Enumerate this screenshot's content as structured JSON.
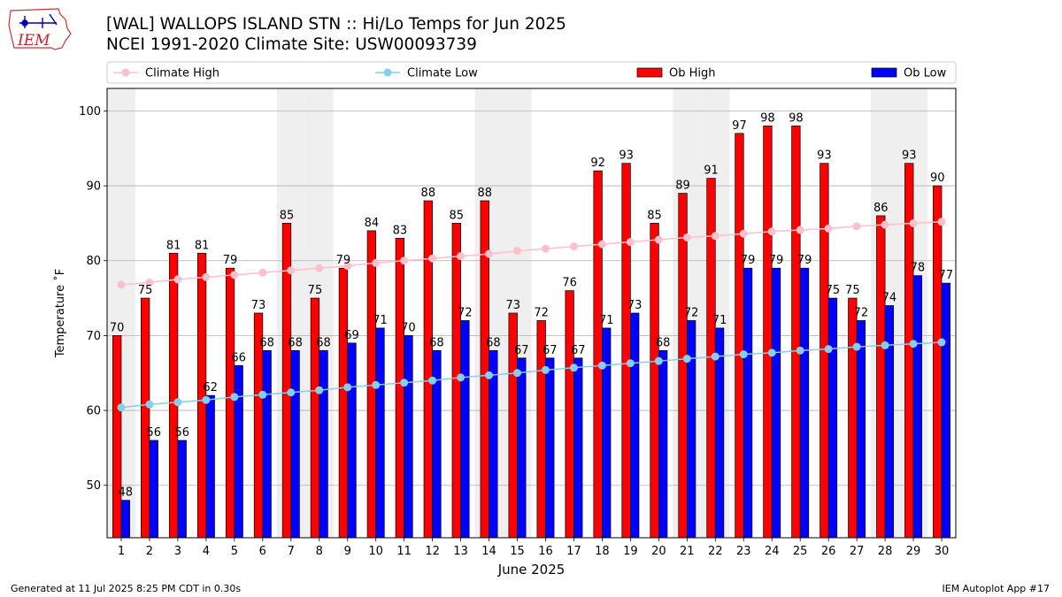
{
  "header": {
    "logo_text": "IEM",
    "title_line1": "[WAL] WALLOPS ISLAND STN :: Hi/Lo Temps for Jun 2025",
    "title_line2": "NCEI 1991-2020 Climate Site: USW00093739"
  },
  "footer": {
    "left": "Generated at 11 Jul 2025 8:25 PM CDT in 0.30s",
    "right": "IEM Autoplot App #17"
  },
  "chart_data": {
    "type": "bar",
    "xlabel": "June 2025",
    "ylabel": "Temperature ˚F",
    "ylim": [
      43,
      103
    ],
    "yticks": [
      50,
      60,
      70,
      80,
      90,
      100
    ],
    "grid": true,
    "legend_position": "top",
    "categories": [
      1,
      2,
      3,
      4,
      5,
      6,
      7,
      8,
      9,
      10,
      11,
      12,
      13,
      14,
      15,
      16,
      17,
      18,
      19,
      20,
      21,
      22,
      23,
      24,
      25,
      26,
      27,
      28,
      29,
      30
    ],
    "weekend_shaded_days": [
      1,
      7,
      8,
      14,
      15,
      21,
      22,
      28,
      29
    ],
    "series": [
      {
        "name": "Ob High",
        "kind": "bar",
        "color": "#ff0000",
        "values": [
          70,
          75,
          81,
          81,
          79,
          73,
          85,
          75,
          79,
          84,
          83,
          88,
          85,
          88,
          73,
          72,
          76,
          92,
          93,
          85,
          89,
          91,
          97,
          98,
          98,
          93,
          75,
          86,
          93,
          90
        ]
      },
      {
        "name": "Ob Low",
        "kind": "bar",
        "color": "#0000ff",
        "values": [
          48,
          56,
          56,
          62,
          66,
          68,
          68,
          68,
          69,
          71,
          70,
          68,
          72,
          68,
          67,
          67,
          67,
          71,
          73,
          68,
          72,
          71,
          79,
          79,
          79,
          75,
          72,
          74,
          78,
          77
        ]
      },
      {
        "name": "Climate High",
        "kind": "line",
        "color": "#ffc0cb",
        "values": [
          76.8,
          77.1,
          77.5,
          77.8,
          78.1,
          78.4,
          78.7,
          79.0,
          79.3,
          79.7,
          80.0,
          80.3,
          80.6,
          80.9,
          81.3,
          81.6,
          81.9,
          82.2,
          82.5,
          82.8,
          83.1,
          83.3,
          83.6,
          83.9,
          84.1,
          84.3,
          84.6,
          84.8,
          85.0,
          85.2
        ]
      },
      {
        "name": "Climate Low",
        "kind": "line",
        "color": "#87ceeb",
        "values": [
          60.4,
          60.8,
          61.1,
          61.4,
          61.8,
          62.1,
          62.4,
          62.7,
          63.1,
          63.4,
          63.7,
          64.0,
          64.4,
          64.7,
          65.0,
          65.4,
          65.7,
          66.0,
          66.3,
          66.6,
          66.9,
          67.2,
          67.5,
          67.7,
          68.0,
          68.2,
          68.5,
          68.7,
          68.9,
          69.1
        ]
      }
    ]
  }
}
